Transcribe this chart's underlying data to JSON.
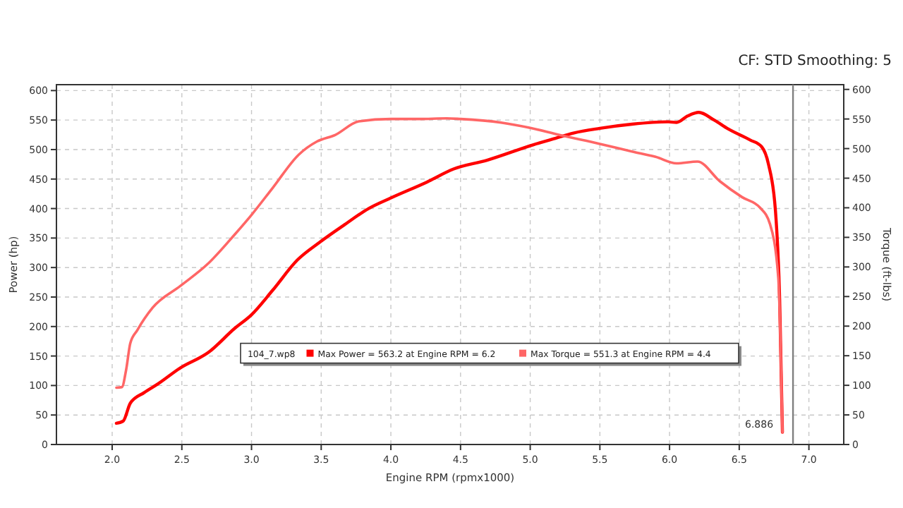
{
  "chart_data": {
    "type": "line",
    "xlabel": "Engine RPM (rpmx1000)",
    "ylabel": "Power (hp)",
    "y2label": "Torque (ft-lbs)",
    "legend_title": "104_7.wp8",
    "annotations": [
      "CF: STD Smoothing: 5"
    ],
    "xlim": [
      1.6,
      7.25
    ],
    "xticks": [
      {
        "value": 2,
        "label": "2.0"
      },
      {
        "value": 2.5,
        "label": "2.5"
      },
      {
        "value": 3,
        "label": "3.0"
      },
      {
        "value": 3.5,
        "label": "3.5"
      },
      {
        "value": 4,
        "label": "4.0"
      },
      {
        "value": 4.5,
        "label": "4.5"
      },
      {
        "value": 5,
        "label": "5.0"
      },
      {
        "value": 5.5,
        "label": "5.5"
      },
      {
        "value": 6,
        "label": "6.0"
      },
      {
        "value": 6.5,
        "label": "6.5"
      },
      {
        "value": 7,
        "label": "7.0"
      }
    ],
    "ylim": [
      0,
      610
    ],
    "yticks": [
      0,
      50,
      100,
      150,
      200,
      250,
      300,
      350,
      400,
      450,
      500,
      550,
      600
    ],
    "y2lim": [
      0,
      608
    ],
    "y2ticks": [
      0,
      50,
      100,
      150,
      200,
      250,
      300,
      350,
      400,
      450,
      500,
      550,
      600
    ],
    "grid": true,
    "legend": "bottom",
    "marker": "none",
    "line_style": "solid",
    "ref_lines": [
      {
        "axis": "x",
        "value": 6.886,
        "label": "6.886",
        "color": "#808080"
      }
    ],
    "series": [
      {
        "name": "Max Power = 563.2 at Engine RPM = 6.2",
        "color": "#ff0000",
        "x": [
          2.03,
          2.08,
          2.13,
          2.23,
          2.33,
          2.49,
          2.69,
          2.88,
          3.0,
          3.15,
          3.33,
          3.49,
          3.67,
          3.84,
          4.0,
          4.26,
          4.45,
          4.69,
          5.02,
          5.18,
          5.31,
          5.5,
          5.73,
          5.99,
          6.05,
          6.13,
          6.21,
          6.32,
          6.42,
          6.58,
          6.66,
          6.71,
          6.76,
          6.79,
          6.81
        ],
        "values": [
          36,
          40,
          70,
          88,
          103,
          130,
          156,
          197,
          220,
          261,
          313,
          343,
          373,
          400,
          418,
          445,
          467,
          482,
          508,
          519,
          528,
          536,
          543,
          547,
          546,
          557,
          563,
          550,
          535,
          516,
          505,
          475,
          396,
          246,
          21
        ]
      },
      {
        "name": "Max Torque = 551.3 at Engine RPM = 4.4",
        "color": "#ff6666",
        "axis": "y2",
        "x": [
          2.03,
          2.07,
          2.1,
          2.13,
          2.18,
          2.29,
          2.49,
          2.69,
          2.88,
          3.0,
          3.15,
          3.34,
          3.47,
          3.6,
          3.77,
          4.0,
          4.2,
          4.4,
          4.5,
          4.79,
          5.0,
          5.21,
          5.5,
          5.73,
          5.9,
          6.05,
          6.2,
          6.36,
          6.52,
          6.65,
          6.72,
          6.78,
          6.81
        ],
        "values": [
          96,
          97,
          126,
          171,
          193,
          231,
          268,
          306,
          355,
          388,
          433,
          490,
          512,
          523,
          546,
          550,
          550,
          551,
          550,
          544,
          535,
          523,
          508,
          495,
          486,
          475,
          478,
          445,
          418,
          400,
          373,
          283,
          21
        ]
      }
    ]
  }
}
